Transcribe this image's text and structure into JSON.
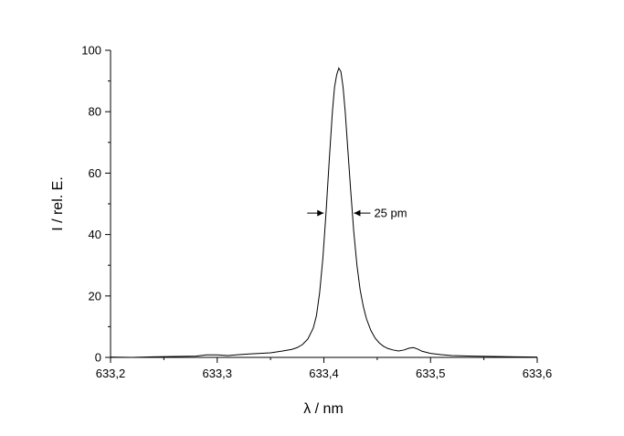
{
  "chart_data": {
    "type": "line",
    "xlabel": "λ / nm",
    "ylabel": "I / rel. E.",
    "xlim": [
      633.2,
      633.6
    ],
    "ylim": [
      0,
      100
    ],
    "x_ticks": [
      633.2,
      633.3,
      633.4,
      633.5,
      633.6
    ],
    "x_tick_labels": [
      "633,2",
      "633,3",
      "633,4",
      "633,5",
      "633,6"
    ],
    "y_ticks": [
      0,
      20,
      40,
      60,
      80,
      100
    ],
    "y_tick_labels": [
      "0",
      "20",
      "40",
      "60",
      "80",
      "100"
    ],
    "grid": false,
    "legend": "none",
    "line_color": "#000000",
    "series": [
      {
        "x": [
          633.2,
          633.22,
          633.24,
          633.26,
          633.28,
          633.29,
          633.3,
          633.31,
          633.32,
          633.33,
          633.34,
          633.35,
          633.36,
          633.37,
          633.375,
          633.38,
          633.385,
          633.39,
          633.393,
          633.396,
          633.399,
          633.402,
          633.405,
          633.408,
          633.41,
          633.412,
          633.414,
          633.416,
          633.418,
          633.42,
          633.422,
          633.425,
          633.428,
          633.431,
          633.434,
          633.437,
          633.44,
          633.444,
          633.448,
          633.452,
          633.456,
          633.46,
          633.465,
          633.47,
          633.475,
          633.48,
          633.484,
          633.488,
          633.492,
          633.5,
          633.51,
          633.52,
          633.54,
          633.56,
          633.58,
          633.6
        ],
        "y": [
          0.1,
          0.0,
          0.2,
          0.3,
          0.4,
          0.8,
          0.8,
          0.6,
          0.9,
          1.1,
          1.3,
          1.5,
          2.0,
          2.6,
          3.2,
          4.2,
          6.0,
          9.5,
          13.5,
          21.0,
          32.0,
          47.0,
          64.0,
          80.0,
          88.0,
          92.0,
          94.2,
          93.0,
          88.0,
          80.0,
          70.0,
          55.0,
          41.0,
          30.0,
          22.0,
          16.5,
          12.5,
          8.8,
          6.3,
          4.7,
          3.6,
          2.9,
          2.4,
          2.1,
          2.4,
          3.0,
          3.2,
          2.7,
          2.0,
          1.3,
          0.9,
          0.6,
          0.4,
          0.3,
          0.2,
          0.1
        ]
      }
    ],
    "annotation": {
      "text": "25 pm",
      "y": 47,
      "left_x": 633.4015,
      "right_x": 633.4265
    }
  }
}
